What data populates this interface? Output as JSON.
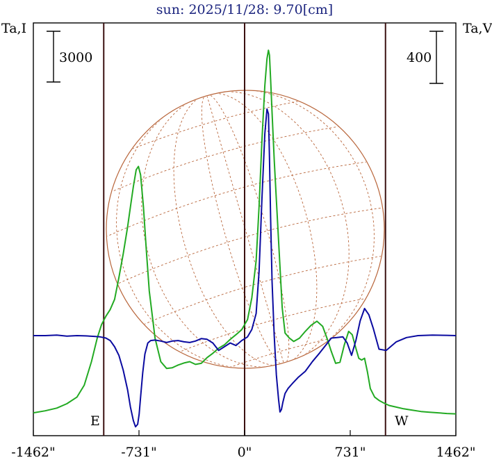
{
  "chart_data": {
    "type": "line",
    "title": "sun: 2025/11/28: 9.70[cm]",
    "y_left_label": "Ta,I",
    "y_right_label": "Ta,V",
    "scale_left": "3000",
    "scale_right": "400",
    "limb_east": "E",
    "limb_west": "W",
    "x_ticks": [
      {
        "value": -1462,
        "label": "-1462\""
      },
      {
        "value": -731,
        "label": "-731\""
      },
      {
        "value": 0,
        "label": "0\""
      },
      {
        "value": 731,
        "label": "731\""
      },
      {
        "value": 1462,
        "label": "1462\""
      }
    ],
    "xlim": [
      -1462,
      1462
    ],
    "vertical_lines_arcsec": [
      -975,
      0,
      975
    ],
    "grid": false,
    "colors": {
      "stokes_i": "#22aa22",
      "stokes_v": "#0a0aa0",
      "disk": "#b8653a",
      "vlines": "#3a1010",
      "title": "#1a237e"
    },
    "series": [
      {
        "name": "I",
        "color": "#22aa22",
        "x": [
          -1462,
          -1380,
          -1300,
          -1230,
          -1160,
          -1110,
          -1060,
          -1020,
          -990,
          -960,
          -930,
          -900,
          -870,
          -840,
          -810,
          -790,
          -770,
          -750,
          -735,
          -720,
          -700,
          -680,
          -660,
          -620,
          -580,
          -540,
          -500,
          -460,
          -420,
          -380,
          -340,
          -300,
          -260,
          -220,
          -180,
          -140,
          -100,
          -60,
          -20,
          20,
          50,
          80,
          100,
          120,
          140,
          155,
          165,
          172,
          180,
          190,
          205,
          220,
          240,
          260,
          280,
          310,
          340,
          380,
          420,
          460,
          500,
          540,
          570,
          600,
          630,
          660,
          690,
          720,
          745,
          770,
          790,
          810,
          830,
          850,
          870,
          900,
          930,
          960,
          1000,
          1050,
          1100,
          1160,
          1220,
          1280,
          1340,
          1400,
          1462
        ],
        "y": [
          8,
          14,
          22,
          35,
          55,
          90,
          160,
          230,
          270,
          295,
          315,
          345,
          410,
          480,
          560,
          620,
          680,
          730,
          740,
          715,
          620,
          490,
          370,
          230,
          160,
          140,
          142,
          150,
          156,
          160,
          152,
          155,
          172,
          185,
          200,
          210,
          226,
          240,
          255,
          285,
          350,
          460,
          620,
          820,
          980,
          1060,
          1085,
          1070,
          1000,
          900,
          760,
          640,
          480,
          320,
          245,
          230,
          220,
          230,
          250,
          268,
          280,
          265,
          230,
          190,
          155,
          158,
          210,
          250,
          240,
          200,
          170,
          165,
          170,
          130,
          80,
          55,
          45,
          38,
          30,
          25,
          20,
          16,
          12,
          10,
          8,
          6,
          5
        ]
      },
      {
        "name": "V",
        "color": "#0a0aa0",
        "x": [
          -1462,
          -1380,
          -1300,
          -1230,
          -1160,
          -1100,
          -1040,
          -1000,
          -960,
          -930,
          -900,
          -870,
          -840,
          -810,
          -790,
          -770,
          -755,
          -740,
          -730,
          -720,
          -705,
          -690,
          -670,
          -650,
          -620,
          -580,
          -540,
          -500,
          -460,
          -420,
          -380,
          -340,
          -300,
          -260,
          -220,
          -180,
          -140,
          -100,
          -60,
          -20,
          20,
          50,
          80,
          100,
          120,
          140,
          155,
          165,
          172,
          180,
          190,
          205,
          220,
          235,
          245,
          255,
          265,
          280,
          300,
          330,
          370,
          420,
          470,
          520,
          560,
          600,
          640,
          680,
          710,
          740,
          770,
          800,
          830,
          860,
          890,
          930,
          980,
          1050,
          1120,
          1200,
          1300,
          1400,
          1462
        ],
        "y": [
          0,
          0,
          2,
          -2,
          0,
          -1,
          -3,
          -5,
          -10,
          -20,
          -45,
          -80,
          -140,
          -220,
          -290,
          -345,
          -370,
          -360,
          -320,
          -250,
          -150,
          -75,
          -30,
          -20,
          -18,
          -22,
          -28,
          -22,
          -20,
          -25,
          -28,
          -22,
          -12,
          -15,
          -30,
          -60,
          -45,
          -30,
          -40,
          -20,
          -5,
          25,
          90,
          260,
          560,
          820,
          920,
          900,
          720,
          480,
          220,
          0,
          -160,
          -260,
          -310,
          -300,
          -270,
          -235,
          -215,
          -195,
          -170,
          -145,
          -105,
          -70,
          -40,
          -10,
          -8,
          -5,
          -30,
          -80,
          -20,
          60,
          110,
          85,
          30,
          -55,
          -60,
          -25,
          -8,
          0,
          2,
          1,
          0
        ]
      }
    ]
  }
}
